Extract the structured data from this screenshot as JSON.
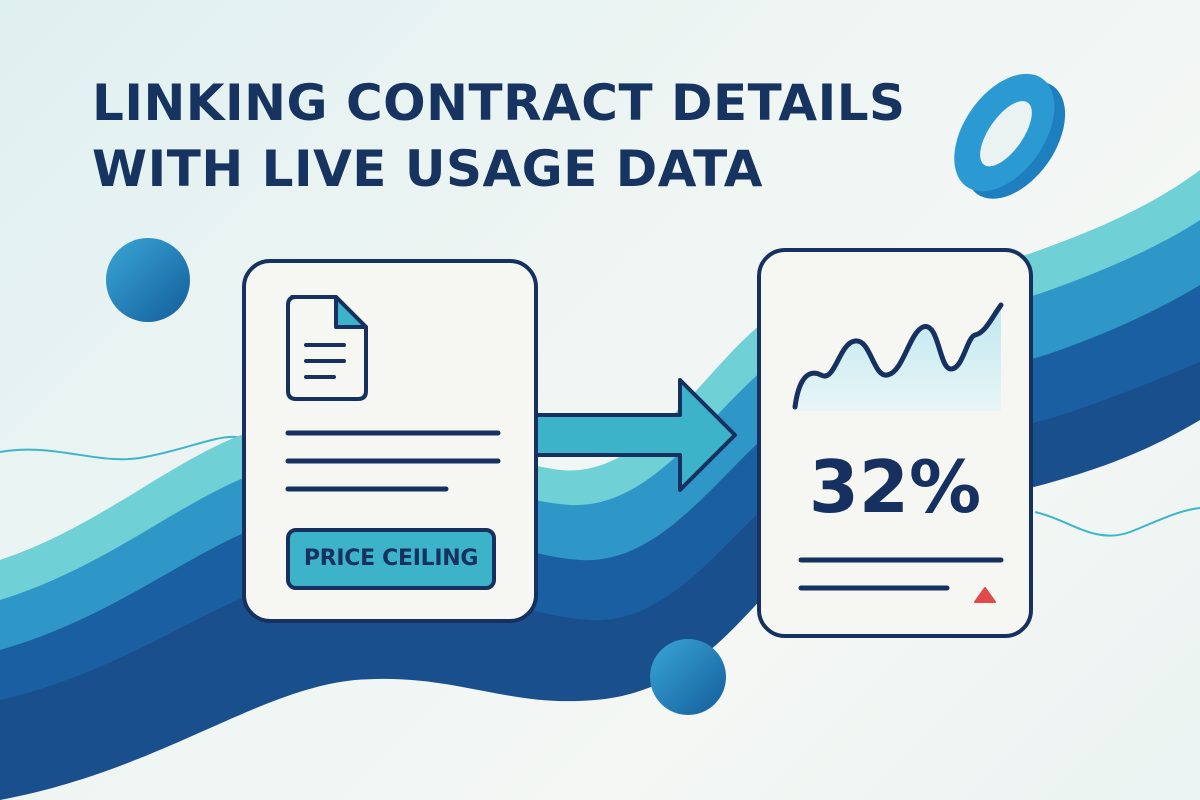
{
  "headline": {
    "line1": "LINKING CONTRACT DETAILS",
    "line2": "WITH LIVE USAGE DATA"
  },
  "contract_card": {
    "icon": "document-icon",
    "tag_label": "PRICE CEILING"
  },
  "usage_card": {
    "chart_icon": "line-chart-icon",
    "value": "32%",
    "indicator_icon": "red-up-triangle-icon"
  },
  "connector": {
    "icon": "right-arrow-icon"
  },
  "colors": {
    "navy": "#163160",
    "teal": "#3cb3c9",
    "blue": "#1b6fae",
    "light_teal": "#6fd0d6",
    "alert_red": "#e04a4a"
  }
}
